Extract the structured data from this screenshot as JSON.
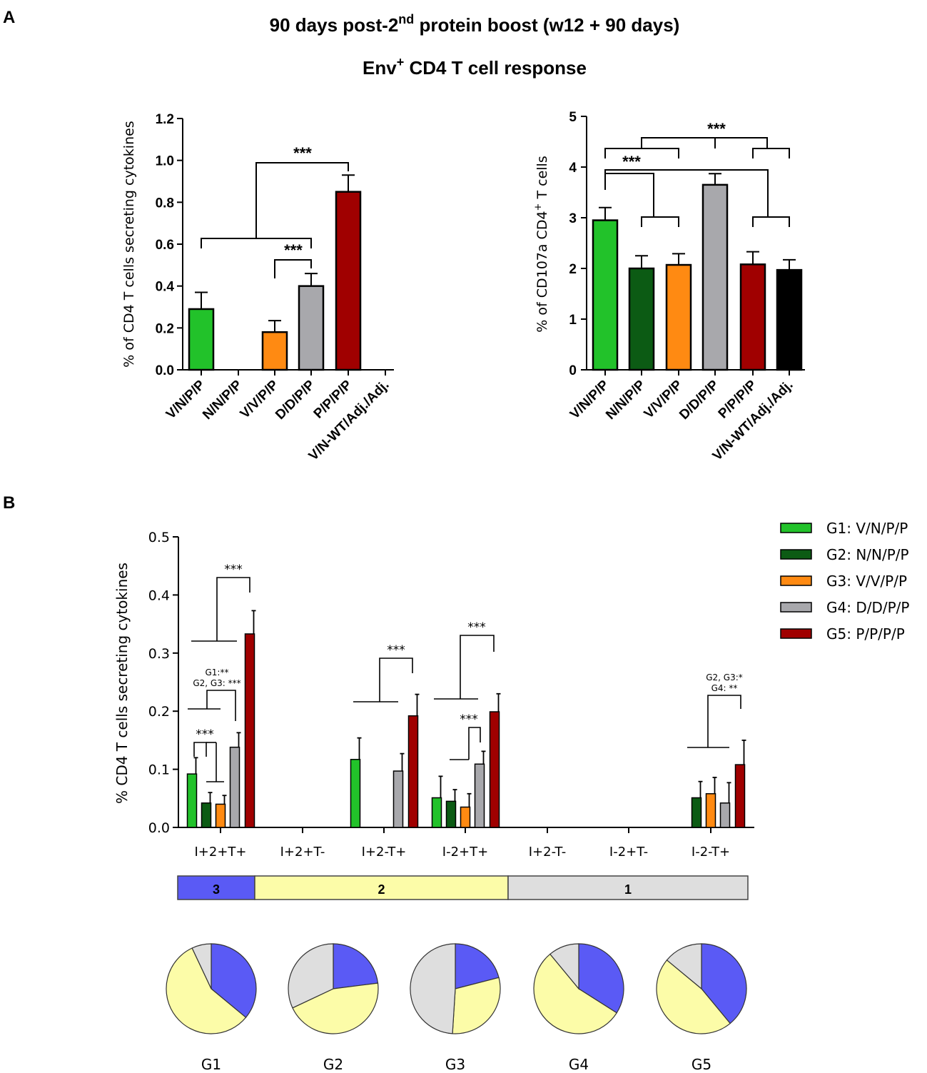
{
  "header": {
    "label_a": "A",
    "label_b": "B",
    "title_line1_pre": "90 days post-2",
    "title_line1_sup": "nd",
    "title_line1_post": " protein boost (w12 + 90 days)",
    "title_line2_pre": "Env",
    "title_line2_sup": "+",
    "title_line2_post": " CD4 T cell response"
  },
  "colors": {
    "G1": "#22c22a",
    "G2": "#0c5b14",
    "G3": "#ff8a12",
    "G4": "#a8a8ac",
    "G5": "#a00000",
    "G6": "#000000",
    "deg3": "#5a5af5",
    "deg2": "#fcfca8",
    "deg1": "#dedede"
  },
  "chart_data": [
    {
      "id": "A1",
      "type": "bar",
      "ylabel": "% of CD4 T cells secreting cytokines",
      "ylim": [
        0,
        1.2
      ],
      "yticks": [
        "0.0",
        "0.2",
        "0.4",
        "0.6",
        "0.8",
        "1.0",
        "1.2"
      ],
      "categories": [
        "V/N/P/P",
        "N/N/P/P",
        "V/V/P/P",
        "D/D/P/P",
        "P/P/P/P",
        "V/N-WT/Adj./Adj."
      ],
      "colors": [
        "G1",
        "G2",
        "G3",
        "G4",
        "G5",
        "G6"
      ],
      "values": [
        0.29,
        null,
        0.18,
        0.4,
        0.85,
        null
      ],
      "errors": [
        0.08,
        null,
        0.055,
        0.06,
        0.08,
        null
      ],
      "significance": [
        "***",
        "***"
      ]
    },
    {
      "id": "A2",
      "type": "bar",
      "ylabel_pre": "% of CD107a CD4",
      "ylabel_sup": "+",
      "ylabel_post": " T cells",
      "ylim": [
        0,
        5
      ],
      "yticks": [
        "0",
        "1",
        "2",
        "3",
        "4",
        "5"
      ],
      "categories": [
        "V/N/P/P",
        "N/N/P/P",
        "V/V/P/P",
        "D/D/P/P",
        "P/P/P/P",
        "V/N-WT/Adj./Adj."
      ],
      "colors": [
        "G1",
        "G2",
        "G3",
        "G4",
        "G5",
        "G6"
      ],
      "values": [
        2.95,
        2.0,
        2.07,
        3.65,
        2.08,
        1.97
      ],
      "errors": [
        0.25,
        0.25,
        0.22,
        0.22,
        0.25,
        0.2
      ],
      "significance": [
        "***",
        "***"
      ]
    },
    {
      "id": "B",
      "type": "bar",
      "ylabel": "% CD4 T cells secreting cytokines",
      "ylim": [
        0,
        0.5
      ],
      "yticks": [
        "0.0",
        "0.1",
        "0.2",
        "0.3",
        "0.4",
        "0.5"
      ],
      "categories": [
        "I+2+T+",
        "I+2+T-",
        "I+2-T+",
        "I-2+T+",
        "I+2-T-",
        "I-2+T-",
        "I-2-T+"
      ],
      "series": [
        {
          "name": "G1",
          "label": "G1: V/N/P/P",
          "values": [
            0.092,
            0,
            0.117,
            0.051,
            0,
            0,
            0
          ],
          "errors": [
            0.028,
            0,
            0.037,
            0.037,
            0,
            0,
            0
          ]
        },
        {
          "name": "G2",
          "label": "G2: N/N/P/P",
          "values": [
            0.042,
            0,
            0,
            0.045,
            0,
            0,
            0.051
          ],
          "errors": [
            0.018,
            0,
            0,
            0.02,
            0,
            0,
            0.028
          ]
        },
        {
          "name": "G3",
          "label": "G3: V/V/P/P",
          "values": [
            0.04,
            0,
            0,
            0.035,
            0,
            0,
            0.058
          ],
          "errors": [
            0.015,
            0,
            0,
            0.023,
            0,
            0,
            0.028
          ]
        },
        {
          "name": "G4",
          "label": "G4: D/D/P/P",
          "values": [
            0.138,
            0,
            0.097,
            0.109,
            0,
            0,
            0.042
          ],
          "errors": [
            0.025,
            0,
            0.03,
            0.022,
            0,
            0,
            0.035
          ]
        },
        {
          "name": "G5",
          "label": "G5:  P/P/P/P",
          "values": [
            0.333,
            0,
            0.192,
            0.199,
            0,
            0,
            0.108
          ],
          "errors": [
            0.04,
            0,
            0.037,
            0.031,
            0,
            0,
            0.042
          ]
        }
      ],
      "annotations": {
        "star3": "***",
        "g1_line1": "G1:**",
        "g1_line2": "G2, G3: ***",
        "g7_line1": "G2, G3:*",
        "g7_line2": "G4: **"
      },
      "degree_bar": [
        {
          "label": "3",
          "color": "deg3"
        },
        {
          "label": "2",
          "color": "deg2"
        },
        {
          "label": "1",
          "color": "deg1"
        }
      ]
    },
    {
      "id": "pies",
      "type": "pie",
      "slice_order": [
        "3",
        "2",
        "1"
      ],
      "pies": [
        {
          "label": "G1",
          "fractions": [
            0.36,
            0.57,
            0.07
          ]
        },
        {
          "label": "G2",
          "fractions": [
            0.23,
            0.45,
            0.32
          ]
        },
        {
          "label": "G3",
          "fractions": [
            0.21,
            0.3,
            0.49
          ]
        },
        {
          "label": "G4",
          "fractions": [
            0.34,
            0.55,
            0.11
          ]
        },
        {
          "label": "G5",
          "fractions": [
            0.39,
            0.47,
            0.14
          ]
        }
      ]
    }
  ]
}
